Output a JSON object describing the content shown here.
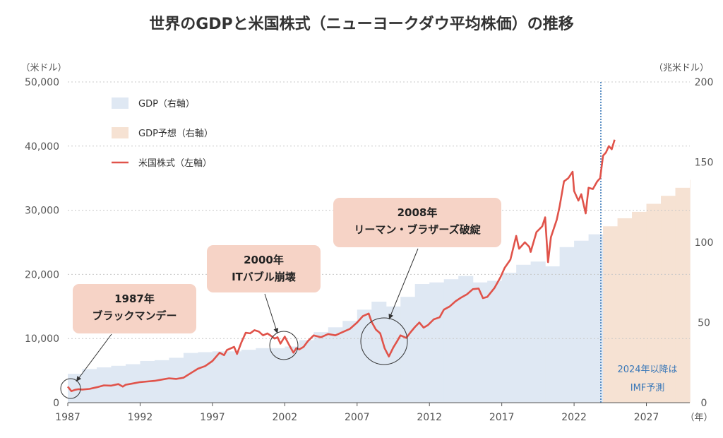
{
  "chart_data": {
    "type": "line",
    "title": "世界のGDPと米国株式（ニューヨークダウ平均株価）の推移",
    "left_axis": {
      "unit_label": "（米ドル）",
      "ylim": [
        0,
        50000
      ],
      "ticks": [
        "0",
        "10,000",
        "20,000",
        "30,000",
        "40,000",
        "50,000"
      ],
      "tick_values": [
        0,
        10000,
        20000,
        30000,
        40000,
        50000
      ]
    },
    "right_axis": {
      "unit_label": "（兆米ドル）",
      "ylim": [
        0,
        200
      ],
      "ticks": [
        "0",
        "50",
        "100",
        "150",
        "200"
      ],
      "tick_values": [
        0,
        50,
        100,
        150,
        200
      ]
    },
    "x_axis": {
      "unit_label": "（年）",
      "xlim": [
        1987,
        2030
      ],
      "ticks": [
        "1987",
        "1992",
        "1997",
        "2002",
        "2007",
        "2012",
        "2017",
        "2022",
        "2027"
      ],
      "tick_values": [
        1987,
        1992,
        1997,
        2002,
        2007,
        2012,
        2017,
        2022,
        2027
      ]
    },
    "grid": true,
    "legend_position": "top-left",
    "colors": {
      "gdp": "#dfe8f3",
      "gdp_forecast": "#f6e2d3",
      "stock": "#e0534a",
      "annotation_box": "#f6d3c6",
      "divider": "#3a78b8",
      "note_text": "#3a78b8"
    },
    "series": [
      {
        "name": "GDP（右軸）",
        "kind": "step-area",
        "axis": "right",
        "x": [
          1987,
          1988,
          1989,
          1990,
          1991,
          1992,
          1993,
          1994,
          1995,
          1996,
          1997,
          1998,
          1999,
          2000,
          2001,
          2002,
          2003,
          2004,
          2005,
          2006,
          2007,
          2008,
          2009,
          2010,
          2011,
          2012,
          2013,
          2014,
          2015,
          2016,
          2017,
          2018,
          2019,
          2020,
          2021,
          2022,
          2023
        ],
        "values": [
          18,
          21,
          22,
          23,
          24,
          26,
          26.5,
          28,
          31,
          31.5,
          32,
          32,
          33,
          34,
          34,
          35,
          39,
          44,
          47,
          51,
          58,
          63,
          60,
          66,
          74,
          75,
          77,
          79,
          75,
          76,
          81,
          86,
          88,
          85,
          97,
          101,
          105
        ]
      },
      {
        "name": "GDP予想（右軸）",
        "kind": "step-area",
        "axis": "right",
        "x": [
          2024,
          2025,
          2026,
          2027,
          2028,
          2029,
          2030
        ],
        "values": [
          110,
          115,
          119,
          124,
          129,
          134,
          139
        ]
      },
      {
        "name": "米国株式（左軸）",
        "kind": "line",
        "axis": "left",
        "x": [
          1987.0,
          1987.25,
          1987.5,
          1987.75,
          1988.0,
          1988.5,
          1989.0,
          1989.5,
          1990.0,
          1990.5,
          1990.8,
          1991.0,
          1991.5,
          1992.0,
          1992.5,
          1993.0,
          1993.5,
          1994.0,
          1994.5,
          1995.0,
          1995.5,
          1996.0,
          1996.5,
          1997.0,
          1997.5,
          1997.8,
          1998.0,
          1998.5,
          1998.7,
          1999.0,
          1999.3,
          1999.6,
          1999.9,
          2000.2,
          2000.5,
          2000.8,
          2001.0,
          2001.3,
          2001.5,
          2001.7,
          2002.0,
          2002.3,
          2002.6,
          2002.8,
          2003.0,
          2003.3,
          2003.6,
          2004.0,
          2004.5,
          2005.0,
          2005.5,
          2006.0,
          2006.5,
          2007.0,
          2007.4,
          2007.8,
          2008.0,
          2008.3,
          2008.6,
          2008.9,
          2009.2,
          2009.5,
          2009.8,
          2010.0,
          2010.4,
          2010.7,
          2011.0,
          2011.3,
          2011.6,
          2011.9,
          2012.3,
          2012.7,
          2013.0,
          2013.4,
          2013.8,
          2014.2,
          2014.6,
          2015.0,
          2015.4,
          2015.7,
          2016.0,
          2016.5,
          2016.9,
          2017.2,
          2017.6,
          2018.0,
          2018.2,
          2018.6,
          2018.9,
          2019.0,
          2019.4,
          2019.8,
          2020.0,
          2020.2,
          2020.4,
          2020.8,
          2021.0,
          2021.3,
          2021.6,
          2021.9,
          2022.0,
          2022.3,
          2022.5,
          2022.8,
          2023.0,
          2023.3,
          2023.6,
          2023.8,
          2024.0,
          2024.2,
          2024.4,
          2024.6,
          2024.8
        ],
        "values": [
          2500,
          1800,
          2000,
          2100,
          2050,
          2150,
          2400,
          2700,
          2650,
          2900,
          2500,
          2800,
          3000,
          3200,
          3300,
          3400,
          3600,
          3800,
          3700,
          3900,
          4600,
          5300,
          5700,
          6500,
          7800,
          7400,
          8200,
          8700,
          7600,
          9400,
          10900,
          10800,
          11300,
          11100,
          10500,
          10800,
          10500,
          10000,
          10200,
          9200,
          10300,
          9000,
          7800,
          8500,
          8300,
          8700,
          9600,
          10500,
          10200,
          10700,
          10500,
          11000,
          11500,
          12500,
          13500,
          13900,
          12600,
          11400,
          10800,
          8500,
          7200,
          8600,
          9700,
          10500,
          10100,
          11000,
          11800,
          12500,
          11700,
          12100,
          13000,
          13300,
          14500,
          15000,
          15800,
          16400,
          16900,
          17700,
          17800,
          16300,
          16500,
          17900,
          19500,
          21000,
          22300,
          26000,
          24000,
          25000,
          24300,
          23500,
          26600,
          27500,
          28900,
          21900,
          25800,
          28500,
          30600,
          34500,
          35000,
          36000,
          33000,
          31500,
          32500,
          29500,
          33500,
          33300,
          34500,
          35000,
          38500,
          39000,
          40000,
          39500,
          41000
        ]
      }
    ],
    "annotations": [
      {
        "lines": [
          "1987年",
          "ブラックマンデー"
        ]
      },
      {
        "lines": [
          "2000年",
          "ITバブル崩壊"
        ]
      },
      {
        "lines": [
          "2008年",
          "リーマン・ブラザーズ破綻"
        ]
      }
    ],
    "forecast_note": [
      "2024年以降は",
      "IMF予測"
    ]
  }
}
